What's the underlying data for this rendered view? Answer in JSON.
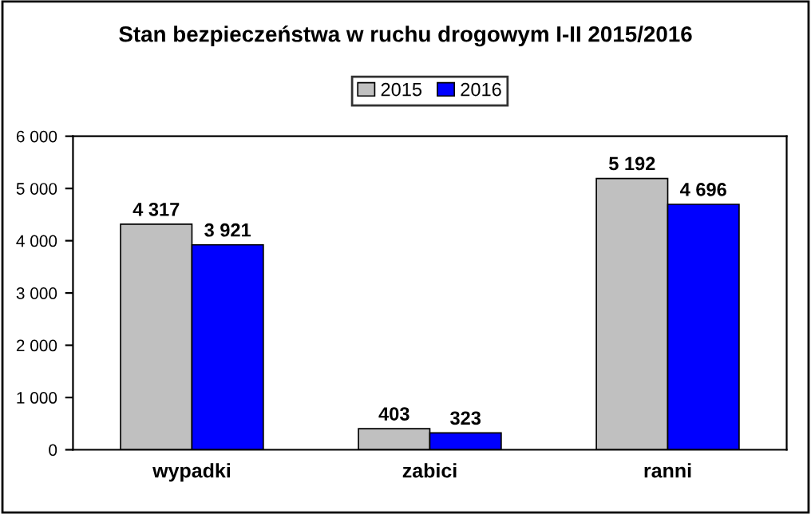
{
  "chart_data": {
    "type": "bar",
    "title": "Stan bezpieczeństwa w ruchu drogowym I-II 2015/2016",
    "categories": [
      "wypadki",
      "zabici",
      "ranni"
    ],
    "series": [
      {
        "name": "2015",
        "color": "#c0c0c0",
        "values": [
          4317,
          403,
          5192
        ],
        "value_labels": [
          "4 317",
          "403",
          "5 192"
        ]
      },
      {
        "name": "2016",
        "color": "#0000ff",
        "values": [
          3921,
          323,
          4696
        ],
        "value_labels": [
          "3 921",
          "323",
          "4 696"
        ]
      }
    ],
    "ylim": [
      0,
      6000
    ],
    "yticks": [
      0,
      {
        "value": 1000,
        "label": "1 000"
      },
      {
        "value": 2000,
        "label": "2 000"
      },
      {
        "value": 3000,
        "label": "3 000"
      },
      {
        "value": 4000,
        "label": "4 000"
      },
      {
        "value": 5000,
        "label": "5 000"
      },
      {
        "value": 6000,
        "label": "6 000"
      }
    ],
    "grid": false,
    "legend": "top"
  }
}
